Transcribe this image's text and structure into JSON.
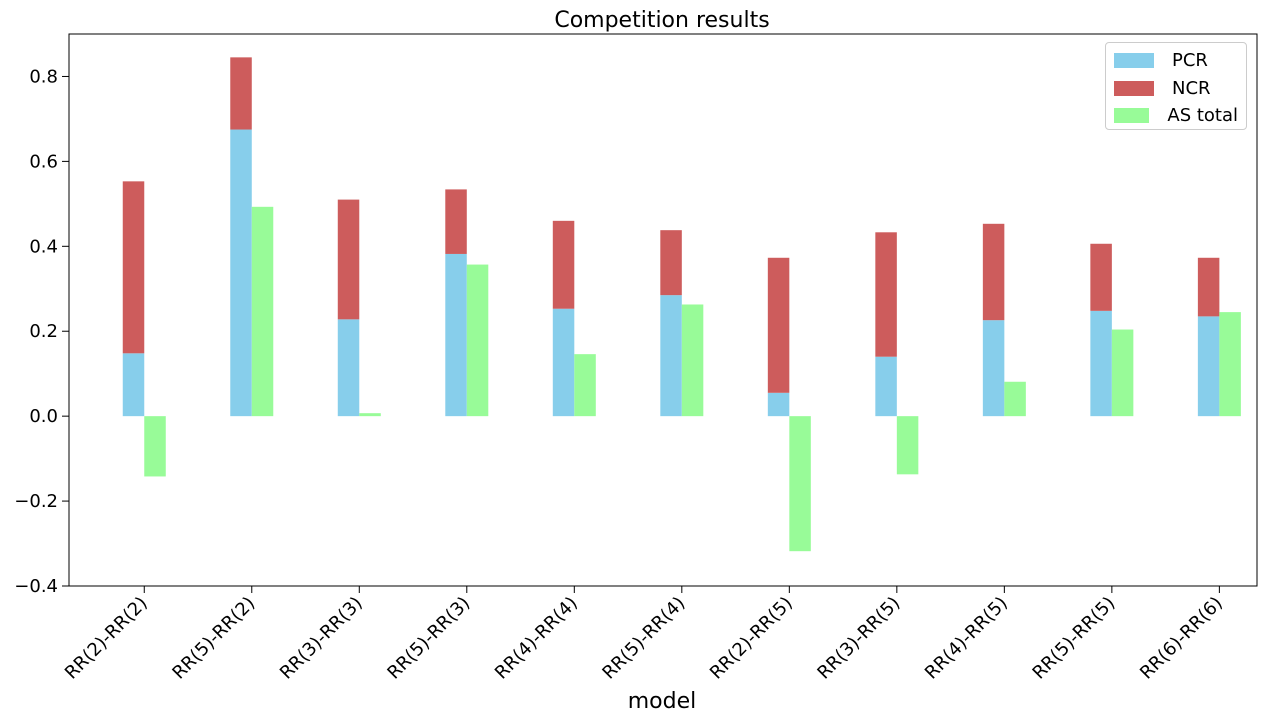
{
  "chart_data": {
    "type": "bar",
    "title": "Competition results",
    "xlabel": "model",
    "ylabel": "",
    "ylim": [
      -0.4,
      0.9
    ],
    "yticks": [
      -0.4,
      -0.2,
      0.0,
      0.2,
      0.4,
      0.6,
      0.8
    ],
    "ytick_labels": [
      "−0.4",
      "−0.2",
      "0.0",
      "0.2",
      "0.4",
      "0.6",
      "0.8"
    ],
    "categories": [
      "RR(2)-RR(2)",
      "RR(5)-RR(2)",
      "RR(3)-RR(3)",
      "RR(5)-RR(3)",
      "RR(4)-RR(4)",
      "RR(5)-RR(4)",
      "RR(2)-RR(5)",
      "RR(3)-RR(5)",
      "RR(4)-RR(5)",
      "RR(5)-RR(5)",
      "RR(6)-RR(6)"
    ],
    "stacked_group": [
      "PCR",
      "NCR"
    ],
    "series": [
      {
        "name": "PCR",
        "color": "#87CEEB",
        "values": [
          0.148,
          0.675,
          0.228,
          0.382,
          0.253,
          0.285,
          0.055,
          0.14,
          0.226,
          0.248,
          0.235
        ]
      },
      {
        "name": "NCR",
        "color": "#CD5C5C",
        "values": [
          0.405,
          0.17,
          0.282,
          0.152,
          0.207,
          0.153,
          0.318,
          0.293,
          0.227,
          0.158,
          0.138
        ]
      },
      {
        "name": "AS total",
        "color": "#98FB98",
        "values": [
          -0.142,
          0.493,
          0.007,
          0.357,
          0.146,
          0.263,
          -0.318,
          -0.137,
          0.081,
          0.204,
          0.245
        ]
      }
    ],
    "legend_position": "top-right",
    "grid": false
  }
}
